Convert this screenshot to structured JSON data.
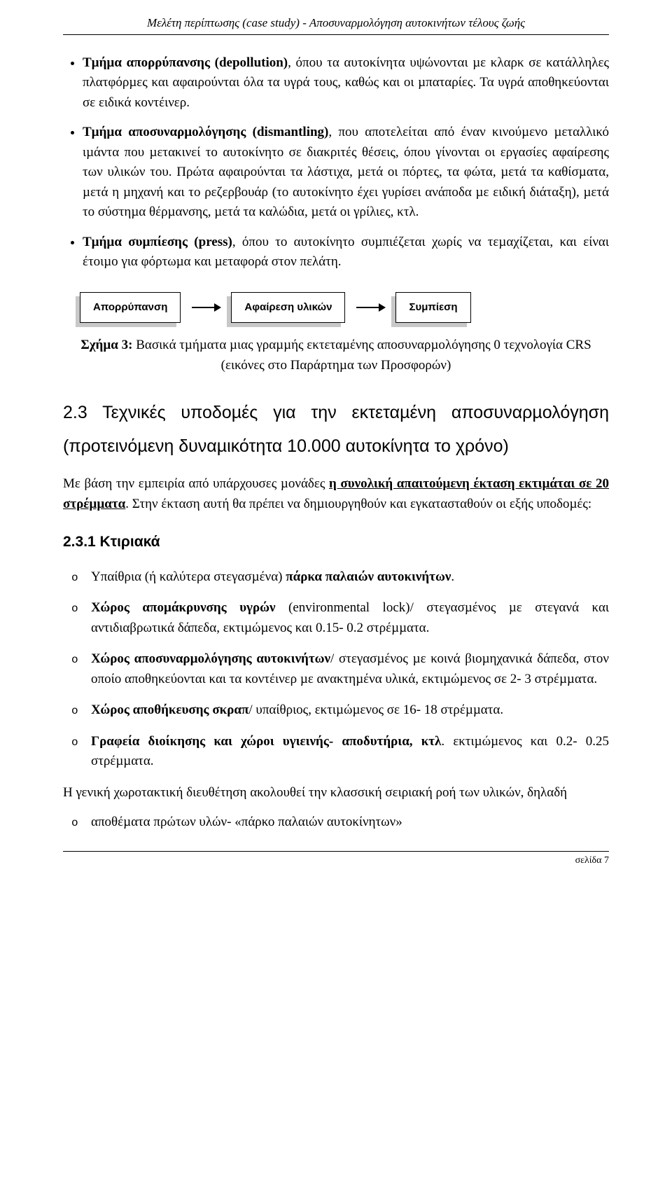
{
  "runningHead": "Μελέτη περίπτωσης (case study) - Αποσυναρμολόγηση αυτοκινήτων τέλους ζωής",
  "bullets": {
    "item1": {
      "leadBold": "Τµήµα απορρύπανσης (depollution)",
      "rest": ", όπου τα αυτοκίνητα υψώνονται µε κλαρκ σε κατάλληλες πλατφόρµες και αφαιρούνται όλα τα υγρά τους, καθώς και οι µπαταρίες. Τα υγρά αποθηκεύονται σε ειδικά κοντέινερ."
    },
    "item2": {
      "leadBold": "Τµήµα αποσυναρµολόγησης (dismantling)",
      "rest": ", που αποτελείται από έναν κινούµενο µεταλλικό ιµάντα που µετακινεί το αυτοκίνητο σε διακριτές θέσεις, όπου γίνονται οι εργασίες αφαίρεσης των υλικών του. Πρώτα αφαιρούνται τα λάστιχα, µετά οι πόρτες, τα φώτα, µετά τα καθίσµατα, µετά η µηχανή και το ρεζερβουάρ (το αυτοκίνητο έχει γυρίσει ανάποδα µε ειδική διάταξη), µετά το σύστηµα θέρµανσης, µετά τα καλώδια, µετά οι γρίλιες, κτλ."
    },
    "item3": {
      "leadBold": "Τµήµα συµπίεσης (press)",
      "rest": ", όπου το αυτοκίνητο συµπιέζεται χωρίς να τεµαχίζεται, και είναι έτοιµο για φόρτωµα και µεταφορά στον πελάτη."
    }
  },
  "flow": {
    "box1": "Απορρύπανση",
    "box2": "Αφαίρεση υλικών",
    "box3": "Συμπίεση"
  },
  "figureCaption": {
    "line1Bold": "Σχήµα 3:",
    "line1Rest": " Βασικά τµήµατα µιας γραµµής εκτεταµένης αποσυναρµολόγησης 0 τεχνολογία CRS",
    "line2": "(εικόνες στο Παράρτηµα των Προσφορών)"
  },
  "sectionHeading": "2.3 Τεχνικές υποδοµές για την εκτεταµένη αποσυναρµολόγηση (προτεινόµενη δυναµικότητα 10.000 αυτοκίνητα το χρόνο)",
  "paragraph1": {
    "pre": "Με βάση την εµπειρία από υπάρχουσες µονάδες ",
    "boldUnd": "η συνολική απαιτούµενη έκταση εκτιµάται σε 20 στρέµµατα",
    "post": ". Στην έκταση αυτή θα πρέπει να δηµιουργηθούν και εγκατασταθούν οι εξής υποδοµές:"
  },
  "subheading": "2.3.1 Κτιριακά",
  "circle": {
    "c1": {
      "pre": "Υπαίθρια (ή καλύτερα στεγασµένα) ",
      "bold": "πάρκα παλαιών αυτοκινήτων",
      "post": "."
    },
    "c2": {
      "bold": "Χώρος αποµάκρυνσης υγρών",
      "post": " (environmental lock)/ στεγασµένος µε στεγανά και αντιδιαβρωτικά δάπεδα, εκτιµώµενος και 0.15- 0.2 στρέµµατα."
    },
    "c3": {
      "bold": "Χώρος αποσυναρµολόγησης αυτοκινήτων",
      "post": "/ στεγασµένος µε κοινά βιοµηχανικά δάπεδα, στον οποίο αποθηκεύονται και τα κοντέινερ µε ανακτηµένα υλικά, εκτιµώµενος σε 2- 3 στρέµµατα."
    },
    "c4": {
      "bold": "Χώρος αποθήκευσης σκραπ",
      "post": "/ υπαίθριος, εκτιµώµενος σε 16- 18 στρέµµατα."
    },
    "c5": {
      "bold": "Γραφεία διοίκησης και χώροι υγιεινής- αποδυτήρια, κτλ",
      "post": ". εκτιµώµενος και 0.2- 0.25 στρέµµατα."
    }
  },
  "closing": "Η γενική χωροτακτική διευθέτηση ακολουθεί την κλασσική σειριακή ροή των υλικών, δηλαδή",
  "lastCircle": "αποθέµατα πρώτων υλών- «πάρκο παλαιών αυτοκίνητων»",
  "pageNum": "σελίδα 7"
}
